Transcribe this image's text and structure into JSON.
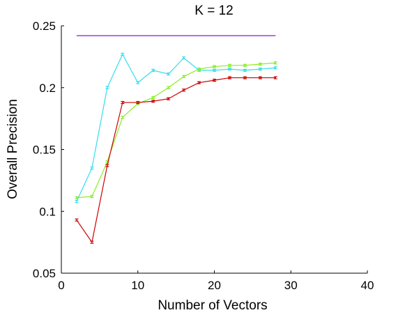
{
  "chart_data": {
    "type": "line",
    "title": "K = 12",
    "xlabel": "Number of Vectors",
    "ylabel": "Overall Precision",
    "xlim": [
      0,
      40
    ],
    "ylim": [
      0.05,
      0.25
    ],
    "xticks": [
      0,
      10,
      20,
      30,
      40
    ],
    "xtick_labels": [
      "0",
      "10",
      "20",
      "30",
      "40"
    ],
    "yticks": [
      0.05,
      0.1,
      0.15,
      0.2,
      0.25
    ],
    "ytick_labels": [
      "0.05",
      "0.1",
      "0.15",
      "0.2",
      "0.25"
    ],
    "grid": false,
    "legend": "none",
    "series": [
      {
        "color": "#7f00bf",
        "x": [
          2,
          28
        ],
        "y": [
          0.242,
          0.242
        ],
        "error_bars": false
      },
      {
        "color": "#33ddee",
        "x": [
          2,
          4,
          6,
          8,
          10,
          12,
          14,
          16,
          18,
          20,
          22,
          24,
          26,
          28
        ],
        "y": [
          0.108,
          0.135,
          0.2,
          0.227,
          0.204,
          0.214,
          0.211,
          0.224,
          0.214,
          0.214,
          0.215,
          0.214,
          0.215,
          0.216
        ],
        "error_bars": true
      },
      {
        "color": "#88ee22",
        "x": [
          2,
          4,
          6,
          8,
          10,
          12,
          14,
          16,
          18,
          20,
          22,
          24,
          26,
          28
        ],
        "y": [
          0.111,
          0.112,
          0.14,
          0.176,
          0.187,
          0.192,
          0.2,
          0.209,
          0.215,
          0.217,
          0.218,
          0.218,
          0.219,
          0.22
        ],
        "error_bars": true
      },
      {
        "color": "#cc0000",
        "x": [
          2,
          4,
          6,
          8,
          10,
          12,
          14,
          16,
          18,
          20,
          22,
          24,
          26,
          28
        ],
        "y": [
          0.093,
          0.075,
          0.137,
          0.188,
          0.188,
          0.189,
          0.191,
          0.198,
          0.204,
          0.206,
          0.208,
          0.208,
          0.208,
          0.208
        ],
        "error_bars": true
      }
    ]
  }
}
